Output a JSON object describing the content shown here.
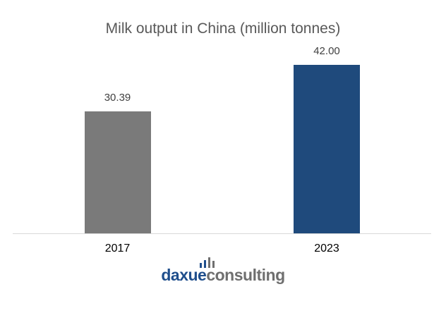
{
  "chart_data": {
    "type": "bar",
    "title": "Milk output in China (million tonnes)",
    "categories": [
      "2017",
      "2023"
    ],
    "values": [
      30.39,
      42.0
    ],
    "value_labels": [
      "30.39",
      "42.00"
    ],
    "colors": [
      "#7a7a7a",
      "#1f4a7c"
    ],
    "xlabel": "",
    "ylabel": "",
    "ylim": [
      0,
      45
    ],
    "grid": false,
    "legend": null
  },
  "branding": {
    "logo_part1": "daxue",
    "logo_part2": "consulting",
    "primary_color": "#1f4e8c",
    "secondary_color": "#6f6f6f"
  }
}
